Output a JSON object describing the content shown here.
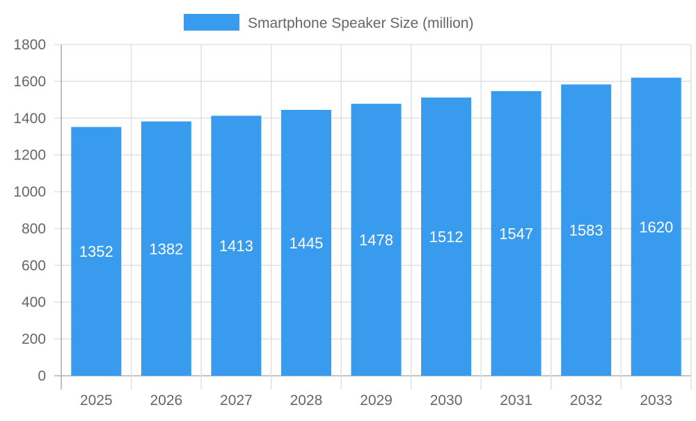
{
  "chart_data": {
    "type": "bar",
    "categories": [
      "2025",
      "2026",
      "2027",
      "2028",
      "2029",
      "2030",
      "2031",
      "2032",
      "2033"
    ],
    "series": [
      {
        "name": "Smartphone Speaker Size (million)",
        "values": [
          1352,
          1382,
          1413,
          1445,
          1478,
          1512,
          1547,
          1583,
          1620
        ],
        "color": "#389bee"
      }
    ],
    "ylim": [
      0,
      1800
    ],
    "yticks": [
      0,
      200,
      400,
      600,
      800,
      1000,
      1200,
      1400,
      1600,
      1800
    ],
    "grid": true,
    "legend_position": "top",
    "data_labels": true
  }
}
